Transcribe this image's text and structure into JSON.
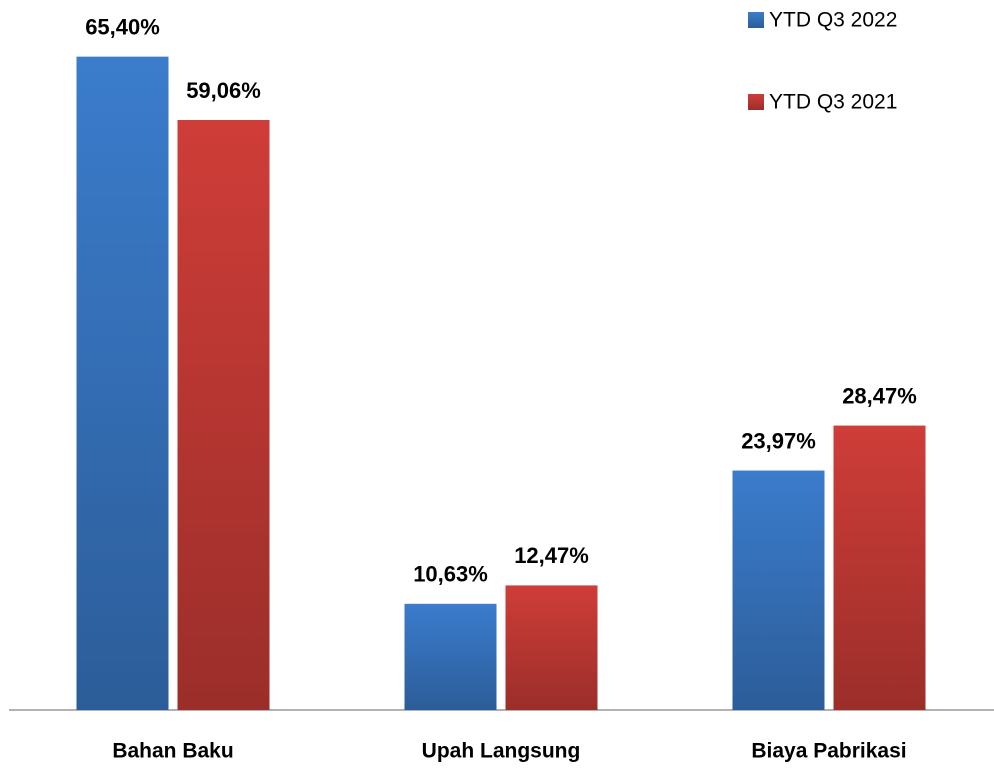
{
  "chart_data": {
    "type": "bar",
    "categories": [
      "Bahan Baku",
      "Upah Langsung",
      "Biaya Pabrikasi"
    ],
    "series": [
      {
        "name": "YTD Q3 2022",
        "color": "#3b7ccc",
        "values": [
          65.4,
          10.63,
          23.97
        ],
        "value_labels": [
          "65,40%",
          "10,63%",
          "23,97%"
        ]
      },
      {
        "name": "YTD Q3 2021",
        "color": "#cf3d38",
        "values": [
          59.06,
          12.47,
          28.47
        ],
        "value_labels": [
          "59,06%",
          "12,47%",
          "28,47%"
        ]
      }
    ],
    "legend": "top-right"
  }
}
